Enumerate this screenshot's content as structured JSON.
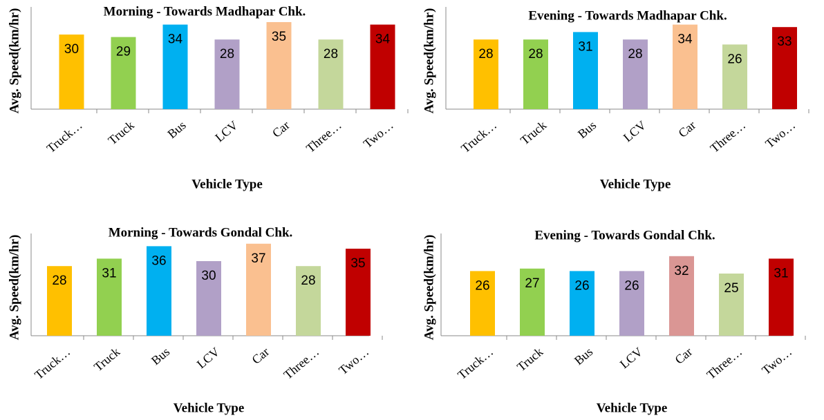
{
  "chart_data": [
    {
      "type": "bar",
      "title": "Morning - Towards Madhapar Chk.",
      "y_label": "Avg. Speed(km/hr)",
      "x_label": "Vehicle Type",
      "categories": [
        "Truck…",
        "Truck",
        "Bus",
        "LCV",
        "Car",
        "Three…",
        "Two…"
      ],
      "values": [
        30,
        29,
        34,
        28,
        35,
        28,
        34
      ],
      "colors": [
        "#ffc000",
        "#92d050",
        "#00b0f0",
        "#b1a0c7",
        "#fac090",
        "#c4d79b",
        "#c00000"
      ],
      "ylim": [
        0,
        40
      ]
    },
    {
      "type": "bar",
      "title": "Evening - Towards Madhapar Chk.",
      "y_label": "Avg. Speed(km/hr)",
      "x_label": "Vehicle Type",
      "categories": [
        "Truck…",
        "Truck",
        "Bus",
        "LCV",
        "Car",
        "Three…",
        "Two…"
      ],
      "values": [
        28,
        28,
        31,
        28,
        34,
        26,
        33
      ],
      "colors": [
        "#ffc000",
        "#92d050",
        "#00b0f0",
        "#b1a0c7",
        "#fac090",
        "#c4d79b",
        "#c00000"
      ],
      "ylim": [
        0,
        40
      ]
    },
    {
      "type": "bar",
      "title": "Morning - Towards Gondal Chk.",
      "y_label": "Avg. Speed(km/hr)",
      "x_label": "Vehicle Type",
      "categories": [
        "Truck…",
        "Truck",
        "Bus",
        "LCV",
        "Car",
        "Three…",
        "Two…"
      ],
      "values": [
        28,
        31,
        36,
        30,
        37,
        28,
        35
      ],
      "colors": [
        "#ffc000",
        "#92d050",
        "#00b0f0",
        "#b1a0c7",
        "#fac090",
        "#c4d79b",
        "#c00000"
      ],
      "ylim": [
        0,
        40
      ]
    },
    {
      "type": "bar",
      "title": "Evening - Towards Gondal Chk.",
      "y_label": "Avg. Speed(km/hr)",
      "x_label": "Vehicle Type",
      "categories": [
        "Truck…",
        "Truck",
        "Bus",
        "LCV",
        "Car",
        "Three…",
        "Two…"
      ],
      "values": [
        26,
        27,
        26,
        26,
        32,
        25,
        31
      ],
      "colors": [
        "#ffc000",
        "#92d050",
        "#00b0f0",
        "#b1a0c7",
        "#da9694",
        "#c4d79b",
        "#c00000"
      ],
      "ylim": [
        0,
        40
      ]
    }
  ]
}
